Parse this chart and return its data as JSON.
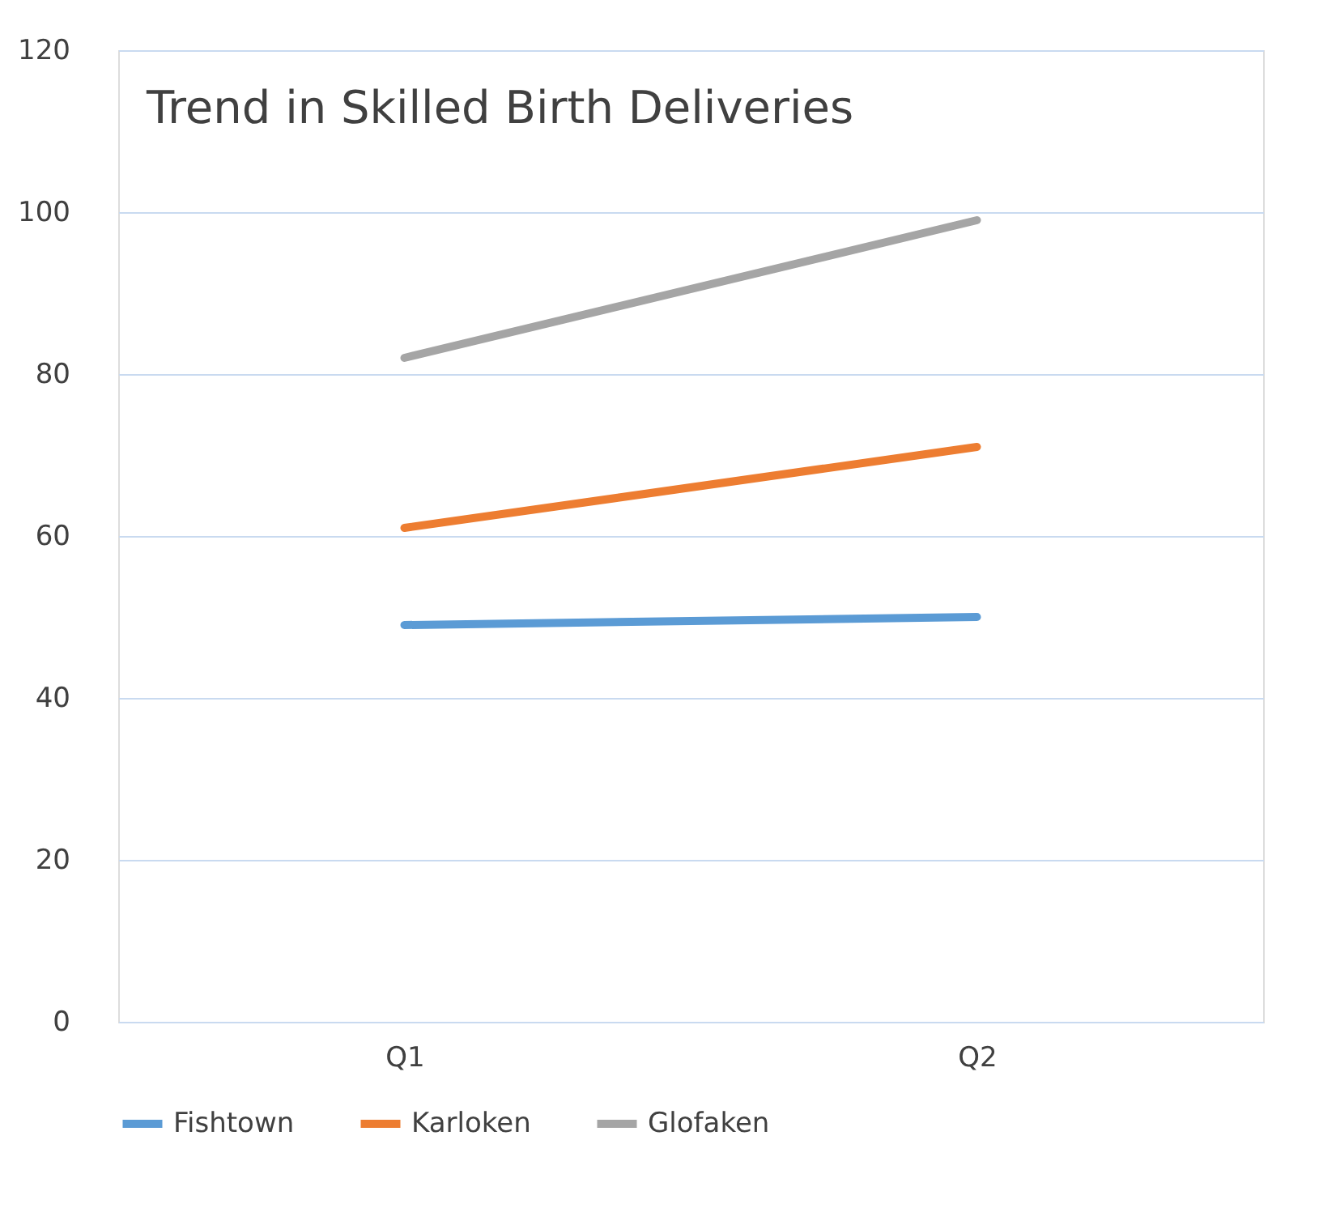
{
  "chart_data": {
    "type": "line",
    "title": "Trend in Skilled Birth Deliveries",
    "categories": [
      "Q1",
      "Q2"
    ],
    "series": [
      {
        "name": "Fishtown",
        "color": "#5b9bd5",
        "values": [
          49,
          50
        ]
      },
      {
        "name": "Karloken",
        "color": "#ed7d31",
        "values": [
          61,
          71
        ]
      },
      {
        "name": "Glofaken",
        "color": "#a5a5a5",
        "values": [
          82,
          99
        ]
      }
    ],
    "ylim": [
      0,
      120
    ],
    "yticks": [
      0,
      20,
      40,
      60,
      80,
      100,
      120
    ],
    "grid": "y",
    "legend": "bottom",
    "marker": "none",
    "line_style": "solid"
  }
}
